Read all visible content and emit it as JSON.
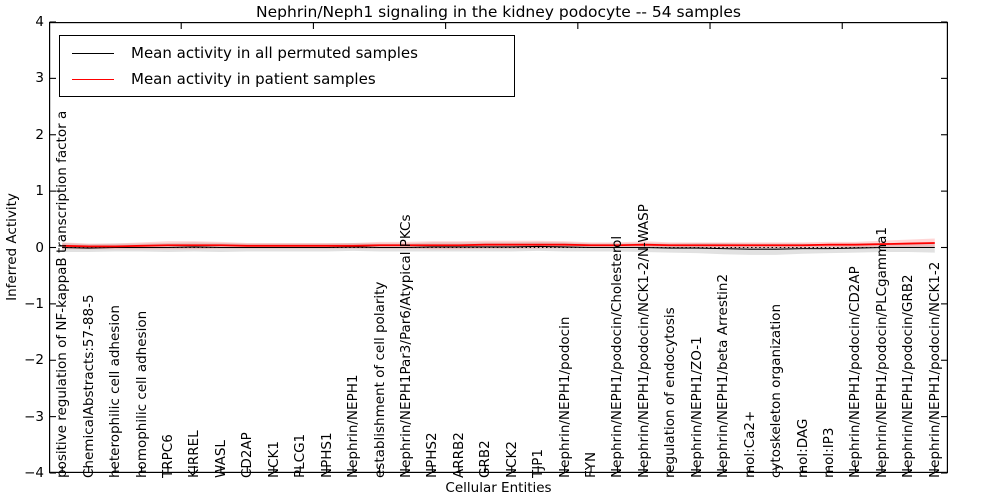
{
  "chart_data": {
    "type": "line",
    "title": "Nephrin/Neph1 signaling in the kidney podocyte -- 54 samples",
    "xlabel": "Cellular Entities",
    "ylabel": "Inferred Activity",
    "ylim": [
      -4,
      4
    ],
    "yticks": [
      -4,
      -3,
      -2,
      -1,
      0,
      1,
      2,
      3,
      4
    ],
    "xlim": [
      0,
      34
    ],
    "top_xticks": [
      5,
      10,
      15,
      20,
      25,
      30
    ],
    "grid": false,
    "legend_position": "upper left",
    "zero_line": {
      "style": "dotted",
      "color": "#000000",
      "y": 0
    },
    "categories": [
      "positive regulation of NF-kappaB transcription factor a",
      "ChemicalAbstracts:57-88-5",
      "heterophilic cell adhesion",
      "homophilic cell adhesion",
      "TRPC6",
      "KIRREL",
      "WASL",
      "CD2AP",
      "NCK1",
      "PLCG1",
      "NPHS1",
      "Nephrin/NEPH1",
      "establishment of cell polarity",
      "Nephrin/NEPH1Par3/Par6/Atypical PKCs",
      "NPHS2",
      "ARRB2",
      "GRB2",
      "NCK2",
      "TJP1",
      "Nephrin/NEPH1/podocin",
      "FYN",
      "Nephrin/NEPH1/podocin/Cholesterol",
      "Nephrin/NEPH1/podocin/NCK1-2/N-WASP",
      "regulation of endocytosis",
      "Nephrin/NEPH1/ZO-1",
      "Nephrin/NEPH1/beta Arrestin2",
      "mol:Ca2+",
      "cytoskeleton organization",
      "mol:DAG",
      "mol:IP3",
      "Nephrin/NEPH1/podocin/CD2AP",
      "Nephrin/NEPH1/podocin/PLCgamma1",
      "Nephrin/NEPH1/podocin/GRB2",
      "Nephrin/NEPH1/podocin/NCK1-2"
    ],
    "series": [
      {
        "name": "Mean activity in all permuted samples",
        "color": "#000000",
        "line_width": 1.1,
        "band_color": "#aaaaaa",
        "band_opacity": 0.35,
        "values": [
          0.0,
          -0.01,
          0.0,
          0.0,
          0.0,
          0.01,
          0.0,
          0.0,
          0.0,
          0.0,
          0.0,
          0.01,
          0.0,
          0.0,
          0.01,
          0.01,
          0.01,
          0.01,
          0.02,
          0.01,
          0.0,
          0.0,
          0.0,
          -0.01,
          -0.01,
          -0.02,
          -0.03,
          -0.03,
          -0.02,
          -0.02,
          -0.01,
          0.0,
          0.0,
          0.0
        ],
        "band_halfwidth": [
          0.08,
          0.07,
          0.07,
          0.07,
          0.08,
          0.08,
          0.08,
          0.07,
          0.07,
          0.07,
          0.07,
          0.07,
          0.07,
          0.07,
          0.08,
          0.08,
          0.08,
          0.08,
          0.08,
          0.08,
          0.07,
          0.07,
          0.08,
          0.08,
          0.09,
          0.1,
          0.1,
          0.1,
          0.09,
          0.08,
          0.08,
          0.08,
          0.08,
          0.09
        ]
      },
      {
        "name": "Mean activity in patient samples",
        "color": "#ff0000",
        "line_width": 1.8,
        "band_color": "#ff4444",
        "band_opacity": 0.22,
        "values": [
          0.03,
          0.02,
          0.02,
          0.03,
          0.04,
          0.04,
          0.04,
          0.03,
          0.03,
          0.03,
          0.03,
          0.03,
          0.04,
          0.04,
          0.04,
          0.04,
          0.05,
          0.05,
          0.05,
          0.05,
          0.04,
          0.04,
          0.05,
          0.04,
          0.04,
          0.04,
          0.04,
          0.04,
          0.04,
          0.05,
          0.05,
          0.06,
          0.07,
          0.08
        ],
        "band_halfwidth": [
          0.06,
          0.05,
          0.05,
          0.06,
          0.07,
          0.07,
          0.06,
          0.05,
          0.05,
          0.05,
          0.05,
          0.05,
          0.06,
          0.06,
          0.07,
          0.07,
          0.07,
          0.07,
          0.07,
          0.06,
          0.05,
          0.05,
          0.06,
          0.05,
          0.05,
          0.05,
          0.05,
          0.05,
          0.05,
          0.05,
          0.05,
          0.06,
          0.07,
          0.08
        ]
      }
    ]
  }
}
